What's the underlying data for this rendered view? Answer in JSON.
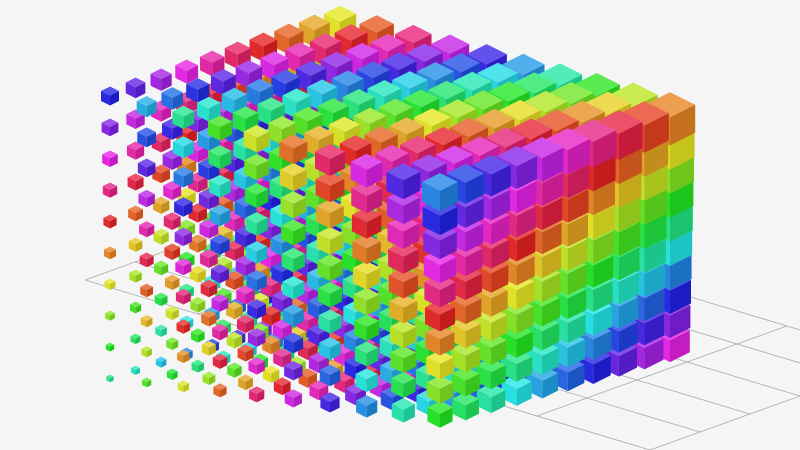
{
  "chart_data": {
    "type": "scatter",
    "dimensions": 3,
    "symbol": "cube",
    "title": "",
    "xlabel": "",
    "ylabel": "",
    "zlabel": "",
    "x": [
      0,
      1,
      2,
      3,
      4,
      5,
      6,
      7,
      8,
      9
    ],
    "y": [
      0,
      1,
      2,
      3,
      4,
      5,
      6,
      7,
      8,
      9
    ],
    "z": [
      0,
      1,
      2,
      3,
      4,
      5,
      6,
      7,
      8,
      9
    ],
    "color_encoding": "hue",
    "size_encoding": "value",
    "grid": true,
    "legend": "none",
    "colors": {
      "background": "#f5f5f5",
      "grid": "#aaaaaa"
    }
  }
}
